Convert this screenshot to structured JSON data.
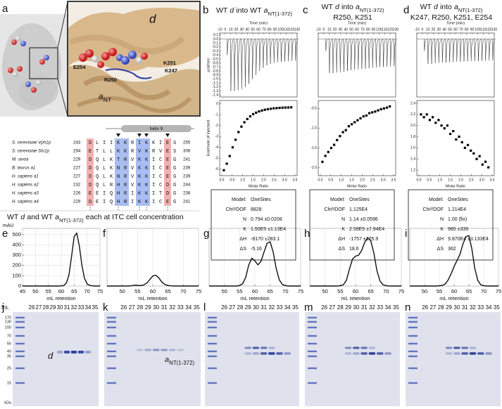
{
  "panel_labels": [
    "a",
    "b",
    "c",
    "d",
    "e",
    "f",
    "g",
    "h",
    "i",
    "j",
    "k",
    "l",
    "m",
    "n"
  ],
  "structure": {
    "subunit_d": "d",
    "residues": [
      "E254",
      "R250",
      "K251",
      "K247"
    ],
    "subunit_a": [
      "a",
      "NT"
    ]
  },
  "alignment": {
    "helix": "helix 9",
    "rows": [
      {
        "species": "S. cerevisiae Vph1p",
        "start": "243",
        "seq": "DLIIKKRIKKIES",
        "end": "255"
      },
      {
        "species": "S. cerevisiae Stv1p",
        "start": "294",
        "seq": "ETLLKKRVKRVES",
        "end": "306"
      },
      {
        "species": "M. sexta",
        "start": "229",
        "seq": "DQLKTRVKKICEG",
        "end": "241"
      },
      {
        "species": "B. taurus a1",
        "start": "227",
        "seq": "DQLKNRVKKICEG",
        "end": "239"
      },
      {
        "species": "H. sapiens a1",
        "start": "227",
        "seq": "DQLKNRVKKICEG",
        "end": "239"
      },
      {
        "species": "H. sapiens a2",
        "start": "232",
        "seq": "DQLRHRVKKICDG",
        "end": "244"
      },
      {
        "species": "H. sapiens a3",
        "start": "226",
        "seq": "EEIQHRIKKITDG",
        "end": "238"
      },
      {
        "species": "H. sapiens a4",
        "start": "229",
        "seq": "DEIQHRIKKICEG",
        "end": "241"
      }
    ],
    "conservation": ":   :  ::  : "
  },
  "section_title": [
    "WT",
    "d",
    "and WT",
    "a",
    "NT(1-372)",
    "each at ITC cell concentration"
  ],
  "itc_tables": [
    {
      "rows": [
        [
          "Model:",
          "OneSites"
        ],
        [
          "Chi²/DOF",
          "8828"
        ],
        [
          "N",
          "0.794 ±0.0208"
        ],
        [
          "K",
          "1.50E5 ±1.13E4"
        ],
        [
          "ΔH",
          "-8170 ±283.1"
        ],
        [
          "ΔS",
          "-5.16"
        ]
      ]
    },
    {
      "rows": [
        [
          "Model:",
          "OneSites"
        ],
        [
          "Chi²/DOF",
          "1.125E4"
        ],
        [
          "N",
          "1.14 ±0.0596"
        ],
        [
          "K",
          "2.59E5 ±7.94E4"
        ],
        [
          "ΔH",
          "-1757 ±125.9"
        ],
        [
          "ΔS",
          "18.6"
        ]
      ]
    },
    {
      "rows": [
        [
          "Model:",
          "OneSites"
        ],
        [
          "Chi²/DOF",
          "1.214E4"
        ],
        [
          "N",
          "1.00 (fix)"
        ],
        [
          "K",
          "985 ±339"
        ],
        [
          "ΔH",
          "9.870E4 ±3.133E4"
        ],
        [
          "ΔS",
          "362"
        ]
      ]
    }
  ],
  "gels": {
    "fractions_label": "frs.",
    "fractions": [
      "26",
      "27",
      "28",
      "29",
      "30",
      "31",
      "32",
      "33",
      "34",
      "35"
    ],
    "ladder": [
      "170",
      "130",
      "100",
      "70",
      "55",
      "40",
      "35",
      "25",
      "15"
    ],
    "ladder_unit": "kDa",
    "d_label": "d",
    "a_label": [
      "a",
      "NT(1-372)"
    ]
  },
  "chart_data": [
    {
      "type": "bar",
      "title": [
        "WT",
        "d",
        "into WT",
        "a",
        "NT(1-372)"
      ],
      "xlabel": "Time (min)",
      "ylabel": "µcal/sec",
      "xaxis": "top",
      "color": "#222222",
      "xlim": [
        -10,
        130
      ],
      "xticks": [
        -10,
        0,
        10,
        20,
        30,
        40,
        50,
        60,
        70,
        80,
        90,
        100,
        110,
        120,
        130
      ],
      "ylim": [
        -1.45,
        0.15
      ],
      "yticks": [
        0.1,
        {
          "value": 0,
          "label": "0.0"
        },
        -0.1,
        -0.2,
        -0.3,
        -0.4,
        -0.5,
        -0.6,
        -0.7,
        -0.8,
        -0.9,
        {
          "value": -1,
          "label": "-1.0"
        },
        -1.1,
        -1.2,
        -1.3,
        -1.4
      ],
      "x": [
        3,
        9.5,
        16,
        22.5,
        29,
        35.5,
        42,
        48.5,
        55,
        61.5,
        68,
        74.5,
        81,
        87.5,
        94,
        100.5,
        107,
        113.5,
        120,
        126.5
      ],
      "values": [
        -0.4,
        -1.3,
        -1.3,
        -1.28,
        -1.25,
        -1.2,
        -1.12,
        -1.0,
        -0.9,
        -0.8,
        -0.72,
        -0.66,
        -0.62,
        -0.6,
        -0.58,
        -0.57,
        -0.56,
        -0.55,
        -0.55,
        -0.54
      ]
    },
    {
      "type": "scatter",
      "xlabel": "Molar Ratio",
      "ylabel": "kcal/mole of injectant",
      "color": "#000000",
      "xlim": [
        -0.1,
        3.6
      ],
      "xticks": [
        {
          "value": 0,
          "label": "0.0"
        },
        0.5,
        {
          "value": 1,
          "label": "1.0"
        },
        1.5,
        {
          "value": 2,
          "label": "2.0"
        },
        2.5,
        {
          "value": 3,
          "label": "3.0"
        },
        3.5
      ],
      "ylim": [
        -6.6,
        0.3
      ],
      "yticks": [
        0,
        -1,
        -2,
        -3,
        -4,
        -5,
        -6
      ],
      "x": [
        0.1,
        0.24,
        0.38,
        0.52,
        0.66,
        0.8,
        0.94,
        1.08,
        1.22,
        1.36,
        1.5,
        1.64,
        1.78,
        1.92,
        2.06,
        2.2,
        2.34,
        2.48,
        2.62,
        2.76,
        2.9,
        3.04,
        3.18,
        3.32
      ],
      "values": [
        -6.1,
        -5.5,
        -4.8,
        -4.0,
        -3.3,
        -2.6,
        -2.1,
        -1.7,
        -1.4,
        -1.15,
        -0.95,
        -0.82,
        -0.7,
        -0.62,
        -0.55,
        -0.5,
        -0.46,
        -0.42,
        -0.4,
        -0.38,
        -0.36,
        -0.35,
        -0.34,
        -0.33
      ]
    },
    {
      "type": "bar",
      "title": [
        "WT",
        "d",
        "into",
        "a",
        "NT(1-372)"
      ],
      "subtitle": "R250, K251",
      "xlabel": "Time (min)",
      "xaxis": "top",
      "color": "#222222",
      "xlim": [
        -10,
        130
      ],
      "xticks": [
        -10,
        0,
        10,
        20,
        30,
        40,
        50,
        60,
        70,
        80,
        90,
        100,
        110,
        120,
        130
      ],
      "ylim": [
        -1.45,
        0.15
      ],
      "x": [
        3,
        9.5,
        16,
        22.5,
        29,
        35.5,
        42,
        48.5,
        55,
        61.5,
        68,
        74.5,
        81,
        87.5,
        94,
        100.5,
        107,
        113.5,
        120,
        126.5
      ],
      "values": [
        -0.3,
        -0.85,
        -0.85,
        -0.84,
        -0.83,
        -0.82,
        -0.8,
        -0.78,
        -0.77,
        -0.76,
        -0.75,
        -0.74,
        -0.73,
        -0.72,
        -0.71,
        -0.7,
        -0.7,
        -0.69,
        -0.69,
        -0.68
      ]
    },
    {
      "type": "scatter",
      "xlabel": "Molar Ratio",
      "color": "#000000",
      "xlim": [
        -0.1,
        3.6
      ],
      "xticks": [
        {
          "value": 0,
          "label": "0.0"
        },
        0.5,
        {
          "value": 1,
          "label": "1.0"
        },
        1.5,
        {
          "value": 2,
          "label": "2.0"
        },
        2.5,
        {
          "value": 3,
          "label": "3.0"
        },
        3.5
      ],
      "ylim": [
        -2.2,
        -0.3
      ],
      "yticks": [
        -0.5,
        {
          "value": -1,
          "label": "-1.0"
        },
        -1.5,
        {
          "value": -2,
          "label": "-2.0"
        }
      ],
      "x": [
        0.1,
        0.24,
        0.38,
        0.52,
        0.66,
        0.8,
        0.94,
        1.08,
        1.22,
        1.36,
        1.5,
        1.64,
        1.78,
        1.92,
        2.06,
        2.2,
        2.34,
        2.48,
        2.62,
        2.76,
        2.9,
        3.04,
        3.18,
        3.32
      ],
      "values": [
        -1.85,
        -1.7,
        -1.6,
        -1.5,
        -1.42,
        -1.3,
        -1.2,
        -1.1,
        -1.05,
        -0.95,
        -0.9,
        -0.85,
        -0.8,
        -0.75,
        -0.7,
        -0.68,
        -0.62,
        -0.6,
        -0.58,
        -0.55,
        -0.52,
        -0.5,
        -0.48,
        -0.45
      ]
    },
    {
      "type": "bar",
      "title": [
        "WT",
        "d",
        "into",
        "a",
        "NT(1-372)"
      ],
      "subtitle": "K247, R250, K251, E254",
      "xlabel": "Time (min)",
      "xaxis": "top",
      "color": "#222222",
      "xlim": [
        -10,
        130
      ],
      "xticks": [
        -10,
        0,
        10,
        20,
        30,
        40,
        50,
        60,
        70,
        80,
        90,
        100,
        110,
        120,
        130
      ],
      "ylim": [
        -1.45,
        0.15
      ],
      "x": [
        3,
        9.5,
        16,
        22.5,
        29,
        35.5,
        42,
        48.5,
        55,
        61.5,
        68,
        74.5,
        81,
        87.5,
        94,
        100.5,
        107,
        113.5,
        120,
        126.5
      ],
      "values": [
        -0.3,
        -0.62,
        -0.62,
        -0.6,
        -0.6,
        -0.59,
        -0.59,
        -0.58,
        -0.58,
        -0.57,
        -0.57,
        -0.56,
        -0.56,
        -0.55,
        -0.55,
        -0.55,
        -0.54,
        -0.54,
        -0.54,
        -0.53
      ]
    },
    {
      "type": "scatter",
      "xlabel": "Molar Ratio",
      "color": "#000000",
      "xlim": [
        -0.1,
        3.6
      ],
      "xticks": [
        {
          "value": 0,
          "label": "0.0"
        },
        0.5,
        {
          "value": 1,
          "label": "1.0"
        },
        1.5,
        {
          "value": 2,
          "label": "2.0"
        },
        2.5,
        {
          "value": 3,
          "label": "3.0"
        },
        3.5
      ],
      "ylim": [
        1.1,
        2.45
      ],
      "yticks": [
        2.4,
        2.2,
        {
          "value": 2,
          "label": "2.0"
        },
        1.8,
        1.6,
        1.4,
        1.2
      ],
      "x": [
        0.1,
        0.24,
        0.38,
        0.52,
        0.66,
        0.8,
        0.94,
        1.08,
        1.22,
        1.36,
        1.5,
        1.64,
        1.78,
        1.92,
        2.06,
        2.2,
        2.34,
        2.48,
        2.62,
        2.76,
        2.9,
        3.04,
        3.18,
        3.32
      ],
      "values": [
        2.2,
        2.15,
        2.2,
        2.1,
        2.15,
        2.05,
        2.1,
        2.0,
        1.95,
        2.0,
        1.85,
        1.9,
        1.75,
        1.8,
        1.7,
        1.6,
        1.65,
        1.55,
        1.5,
        1.4,
        1.45,
        1.3,
        1.35,
        1.25
      ]
    },
    {
      "type": "line",
      "xlabel": "mL retention",
      "ylabel": "mAU",
      "color": "#111111",
      "grid": true,
      "xlim": [
        45,
        75
      ],
      "xticks": [
        45,
        50,
        55,
        60,
        65,
        70,
        75
      ],
      "ylim": [
        0,
        560
      ],
      "yticks": [
        0,
        100,
        200,
        300,
        400,
        500
      ],
      "x": [
        45,
        46,
        47,
        48,
        49,
        50,
        51,
        52,
        53,
        54,
        55,
        56,
        57,
        58,
        59,
        60,
        61,
        62,
        63,
        64,
        65,
        66,
        67,
        68,
        69,
        70,
        71,
        72,
        73,
        74,
        75
      ],
      "values": [
        0,
        0,
        0,
        0,
        0,
        0,
        0,
        0,
        0,
        0,
        0,
        0,
        0,
        0,
        0,
        1,
        5,
        30,
        110,
        290,
        480,
        515,
        390,
        200,
        75,
        22,
        6,
        2,
        0,
        0,
        0
      ]
    },
    {
      "type": "line",
      "xlabel": "mL retention",
      "color": "#111111",
      "grid": true,
      "xlim": [
        45,
        75
      ],
      "xticks": [
        50,
        55,
        60,
        65,
        70,
        75
      ],
      "ylim": [
        0,
        560
      ],
      "x": [
        45,
        46,
        47,
        48,
        49,
        50,
        51,
        52,
        53,
        54,
        55,
        56,
        57,
        58,
        59,
        60,
        61,
        62,
        63,
        64,
        65,
        66,
        67,
        68,
        69,
        70,
        71,
        72,
        73,
        74,
        75
      ],
      "values": [
        0,
        0,
        0,
        0,
        0,
        0,
        0,
        0,
        3,
        8,
        6,
        5,
        10,
        28,
        62,
        98,
        105,
        78,
        38,
        14,
        5,
        2,
        0,
        0,
        0,
        0,
        0,
        0,
        0,
        0,
        0
      ]
    },
    {
      "type": "line",
      "xlabel": "mL retention",
      "color": "#111111",
      "grid": true,
      "xlim": [
        45,
        75
      ],
      "xticks": [
        50,
        55,
        60,
        65,
        70,
        75
      ],
      "ylim": [
        0,
        560
      ],
      "x": [
        45,
        46,
        47,
        48,
        49,
        50,
        51,
        52,
        53,
        54,
        55,
        56,
        57,
        58,
        59,
        60,
        61,
        62,
        63,
        64,
        65,
        66,
        67,
        68,
        69,
        70,
        71,
        72,
        73,
        74,
        75
      ],
      "values": [
        0,
        0,
        0,
        0,
        0,
        0,
        0,
        0,
        0,
        0,
        5,
        22,
        85,
        205,
        270,
        245,
        205,
        240,
        330,
        415,
        430,
        330,
        170,
        60,
        15,
        4,
        0,
        0,
        0,
        0,
        0
      ]
    },
    {
      "type": "line",
      "xlabel": "mL retention",
      "color": "#111111",
      "grid": true,
      "xlim": [
        45,
        75
      ],
      "xticks": [
        50,
        55,
        60,
        65,
        70,
        75
      ],
      "ylim": [
        0,
        560
      ],
      "x": [
        45,
        46,
        47,
        48,
        49,
        50,
        51,
        52,
        53,
        54,
        55,
        56,
        57,
        58,
        59,
        60,
        61,
        62,
        63,
        64,
        65,
        66,
        67,
        68,
        69,
        70,
        71,
        72,
        73,
        74,
        75
      ],
      "values": [
        0,
        0,
        0,
        0,
        0,
        0,
        0,
        0,
        0,
        0,
        3,
        12,
        55,
        165,
        262,
        290,
        300,
        345,
        425,
        470,
        440,
        320,
        150,
        50,
        12,
        3,
        0,
        0,
        0,
        0,
        0
      ]
    },
    {
      "type": "line",
      "xlabel": "mL retention",
      "color": "#111111",
      "grid": true,
      "xlim": [
        45,
        75
      ],
      "xticks": [
        50,
        55,
        60,
        65,
        70,
        75
      ],
      "ylim": [
        0,
        560
      ],
      "x": [
        45,
        46,
        47,
        48,
        49,
        50,
        51,
        52,
        53,
        54,
        55,
        56,
        57,
        58,
        59,
        60,
        61,
        62,
        63,
        64,
        65,
        66,
        67,
        68,
        69,
        70,
        71,
        72,
        73,
        74,
        75
      ],
      "values": [
        0,
        0,
        0,
        0,
        0,
        0,
        0,
        0,
        0,
        0,
        2,
        6,
        20,
        60,
        120,
        190,
        250,
        310,
        410,
        480,
        490,
        360,
        170,
        55,
        12,
        3,
        0,
        0,
        0,
        0,
        0
      ]
    }
  ]
}
